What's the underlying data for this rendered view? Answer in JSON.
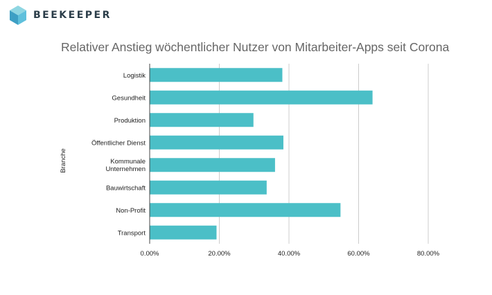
{
  "brand": {
    "name": "BEEKEEPER"
  },
  "chart_data": {
    "type": "bar",
    "orientation": "horizontal",
    "title": "Relativer Anstieg wöchentlicher Nutzer von Mitarbeiter-Apps seit Corona",
    "ylabel": "Branche",
    "xlabel": "",
    "categories": [
      "Logistik",
      "Gesundheit",
      "Produktion",
      "Öffentlicher Dienst",
      "Kommunale Unternehmen",
      "Bauwirtschaft",
      "Non-Profit",
      "Transport"
    ],
    "values": [
      38.1,
      64.0,
      29.8,
      38.4,
      36.0,
      33.6,
      54.8,
      19.2
    ],
    "xlim": [
      0,
      80
    ],
    "xticks": [
      "0.00%",
      "20.00%",
      "40.00%",
      "60.00%",
      "80.00%"
    ],
    "grid": true,
    "colors": {
      "bar": "#4bbfc7",
      "grid": "#cccccc",
      "axis": "#444444"
    }
  }
}
